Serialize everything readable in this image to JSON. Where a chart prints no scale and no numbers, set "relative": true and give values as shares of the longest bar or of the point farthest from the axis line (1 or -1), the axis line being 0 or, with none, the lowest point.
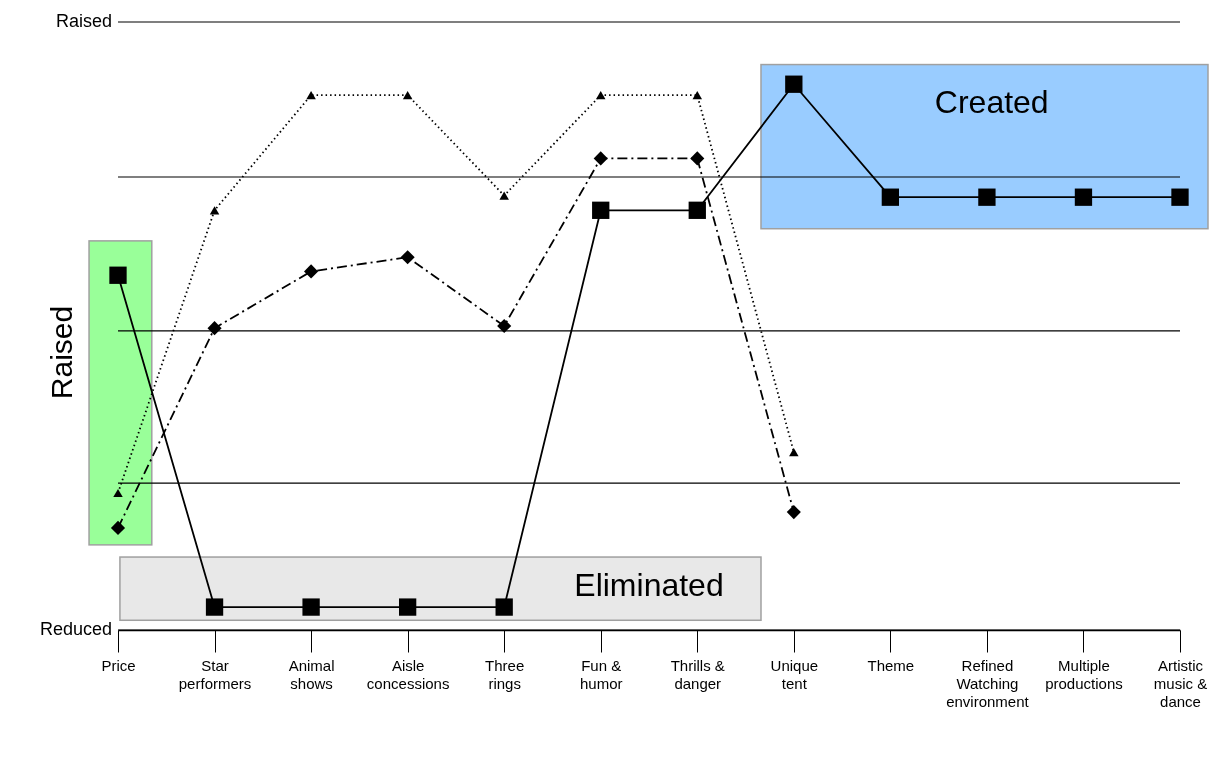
{
  "chart_data": {
    "type": "line",
    "ylabel": "Raised",
    "categories": [
      "Price",
      "Star performers",
      "Animal shows",
      "Aisle concessions",
      "Three rings",
      "Fun & humor",
      "Thrills & danger",
      "Unique tent",
      "Theme",
      "Refined Watching environment",
      "Multiple productions",
      "Artistic music & dance"
    ],
    "series": [
      {
        "color": "#000000",
        "marker": "triangle",
        "line_style": "dotted",
        "values": [
          0.251,
          0.769,
          0.98,
          0.98,
          0.796,
          0.98,
          0.98,
          0.326,
          null,
          null,
          null,
          null
        ]
      },
      {
        "color": "#000000",
        "marker": "diamond",
        "line_style": "dashed",
        "values": [
          0.187,
          0.553,
          0.657,
          0.683,
          0.557,
          0.864,
          0.864,
          0.216,
          null,
          null,
          null,
          null
        ]
      },
      {
        "color": "#000000",
        "marker": "square",
        "line_style": "solid",
        "values": [
          0.65,
          0.042,
          0.042,
          0.042,
          0.042,
          0.769,
          0.769,
          1,
          0.793,
          0.793,
          0.793,
          0.793
        ]
      }
    ],
    "relative": true,
    "ref_lines": [
      {
        "axis": "y",
        "value": 0,
        "label": "Reduced"
      },
      {
        "axis": "y",
        "value": 0.269,
        "label": null
      },
      {
        "axis": "y",
        "value": 0.548,
        "label": null
      },
      {
        "axis": "y",
        "value": 0.83,
        "label": null
      },
      {
        "axis": "y",
        "value": 1.114,
        "label": "Raised"
      }
    ],
    "annotations": [
      "Eliminated",
      "Created"
    ]
  }
}
